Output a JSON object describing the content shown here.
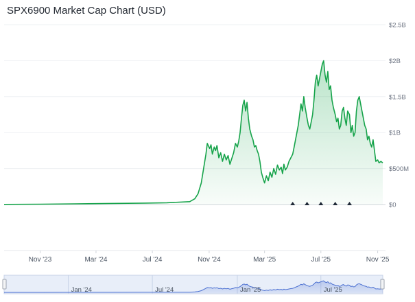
{
  "header": {
    "title": "SPX6900 Market Cap Chart (USD)"
  },
  "chart_data": {
    "type": "area",
    "title": "SPX6900 Market Cap Chart (USD)",
    "xlabel": "",
    "ylabel": "",
    "currency": "USD",
    "ylim": [
      0,
      2500000000
    ],
    "xlim": [
      "2023-08-15",
      "2025-11-12"
    ],
    "y_ticks": [
      "$0",
      "$500M",
      "$1B",
      "$1.5B",
      "$2B",
      "$2.5B"
    ],
    "x_ticks": [
      "Nov '23",
      "Mar '24",
      "Jul '24",
      "Nov '24",
      "Mar '25",
      "Jul '25",
      "Nov '25"
    ],
    "navigator_ticks": [
      "Jan '24",
      "Jul '24",
      "Jan '25",
      "Jul '25"
    ],
    "grid": true,
    "legend": "none",
    "colors": {
      "line": "#16a34a",
      "fill": "#16a34a",
      "navigator": "#4a6fd1"
    },
    "series": [
      {
        "x": [
          "2023-08-15",
          "2023-11-01",
          "2024-01-15",
          "2024-04-01",
          "2024-06-15",
          "2024-08-01",
          "2024-09-20",
          "2024-10-01",
          "2024-10-08",
          "2024-10-15",
          "2024-10-20",
          "2024-10-25",
          "2024-10-28",
          "2024-11-02",
          "2024-11-05",
          "2024-11-08",
          "2024-11-12",
          "2024-11-15",
          "2024-11-18",
          "2024-11-22",
          "2024-11-26",
          "2024-11-30",
          "2024-12-04",
          "2024-12-08",
          "2024-12-12",
          "2024-12-16",
          "2024-12-20",
          "2024-12-24",
          "2024-12-28",
          "2025-01-01",
          "2025-01-04",
          "2025-01-07",
          "2025-01-10",
          "2025-01-13",
          "2025-01-16",
          "2025-01-19",
          "2025-01-22",
          "2025-01-25",
          "2025-01-28",
          "2025-02-01",
          "2025-02-04",
          "2025-02-07",
          "2025-02-10",
          "2025-02-13",
          "2025-02-16",
          "2025-02-19",
          "2025-02-22",
          "2025-02-25",
          "2025-03-01",
          "2025-03-05",
          "2025-03-09",
          "2025-03-13",
          "2025-03-17",
          "2025-03-21",
          "2025-03-25",
          "2025-03-29",
          "2025-04-02",
          "2025-04-06",
          "2025-04-09",
          "2025-04-12",
          "2025-04-15",
          "2025-04-19",
          "2025-04-23",
          "2025-04-27",
          "2025-05-01",
          "2025-05-04",
          "2025-05-07",
          "2025-05-10",
          "2025-05-13",
          "2025-05-16",
          "2025-05-19",
          "2025-05-22",
          "2025-05-25",
          "2025-05-28",
          "2025-06-01",
          "2025-06-04",
          "2025-06-07",
          "2025-06-10",
          "2025-06-13",
          "2025-06-16",
          "2025-06-19",
          "2025-06-22",
          "2025-06-25",
          "2025-06-28",
          "2025-07-01",
          "2025-07-04",
          "2025-07-07",
          "2025-07-10",
          "2025-07-13",
          "2025-07-16",
          "2025-07-19",
          "2025-07-22",
          "2025-07-25",
          "2025-07-28",
          "2025-08-01",
          "2025-08-04",
          "2025-08-07",
          "2025-08-10",
          "2025-08-13",
          "2025-08-16",
          "2025-08-19",
          "2025-08-22",
          "2025-08-25",
          "2025-08-28",
          "2025-09-01",
          "2025-09-04",
          "2025-09-07",
          "2025-09-10",
          "2025-09-13",
          "2025-09-16",
          "2025-09-19",
          "2025-09-22",
          "2025-09-25",
          "2025-09-28",
          "2025-10-01",
          "2025-10-04",
          "2025-10-07",
          "2025-10-10",
          "2025-10-13",
          "2025-10-16",
          "2025-10-19",
          "2025-10-22",
          "2025-10-25",
          "2025-10-28",
          "2025-11-01",
          "2025-11-04",
          "2025-11-08",
          "2025-11-12"
        ],
        "values": [
          2000000,
          5000000,
          10000000,
          15000000,
          20000000,
          25000000,
          40000000,
          80000000,
          150000000,
          300000000,
          500000000,
          700000000,
          850000000,
          780000000,
          830000000,
          700000000,
          800000000,
          750000000,
          820000000,
          650000000,
          720000000,
          600000000,
          700000000,
          620000000,
          680000000,
          560000000,
          640000000,
          720000000,
          850000000,
          800000000,
          880000000,
          1000000000,
          1200000000,
          1380000000,
          1450000000,
          1300000000,
          1420000000,
          1200000000,
          1050000000,
          950000000,
          900000000,
          800000000,
          820000000,
          750000000,
          700000000,
          600000000,
          450000000,
          380000000,
          300000000,
          400000000,
          330000000,
          450000000,
          380000000,
          500000000,
          420000000,
          550000000,
          480000000,
          520000000,
          430000000,
          560000000,
          480000000,
          520000000,
          600000000,
          650000000,
          700000000,
          800000000,
          900000000,
          1000000000,
          1100000000,
          1250000000,
          1400000000,
          1300000000,
          1500000000,
          1350000000,
          1200000000,
          1100000000,
          1050000000,
          1150000000,
          1250000000,
          1450000000,
          1700000000,
          1800000000,
          1650000000,
          1750000000,
          1850000000,
          1950000000,
          2000000000,
          1800000000,
          1700000000,
          1850000000,
          1600000000,
          1650000000,
          1450000000,
          1350000000,
          1250000000,
          1150000000,
          1200000000,
          1050000000,
          1100000000,
          1300000000,
          1350000000,
          1200000000,
          1100000000,
          1300000000,
          1250000000,
          1000000000,
          1100000000,
          950000000,
          1000000000,
          1300000000,
          1450000000,
          1500000000,
          1400000000,
          1300000000,
          1200000000,
          1100000000,
          1050000000,
          900000000,
          950000000,
          850000000,
          800000000,
          900000000,
          750000000,
          600000000,
          620000000,
          580000000,
          600000000,
          580000000
        ]
      }
    ],
    "markers": [
      "2025-05-01",
      "2025-06-01",
      "2025-07-01",
      "2025-08-01",
      "2025-09-01"
    ]
  }
}
